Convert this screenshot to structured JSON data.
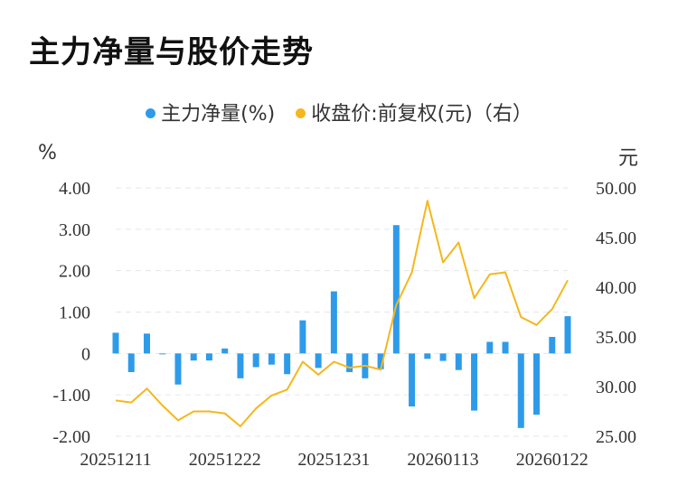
{
  "title": "主力净量与股价走势",
  "legend": [
    {
      "label": "主力净量(%)",
      "color": "#2e9bea"
    },
    {
      "label": "收盘价:前复权(元)（右）",
      "color": "#f5b71c"
    }
  ],
  "left_unit": "%",
  "right_unit": "元",
  "chart_data": {
    "type": "bar+line",
    "title": "主力净量与股价走势",
    "y_left": {
      "label": "%",
      "range": [
        -2,
        4
      ],
      "ticks": [
        "4.00",
        "3.00",
        "2.00",
        "1.00",
        "0",
        "-1.00",
        "-2.00"
      ],
      "tick_values": [
        4,
        3,
        2,
        1,
        0,
        -1,
        -2
      ]
    },
    "y_right": {
      "label": "元",
      "range": [
        25,
        50
      ],
      "ticks": [
        "50.00",
        "45.00",
        "40.00",
        "35.00",
        "30.00",
        "25.00"
      ],
      "tick_values": [
        50,
        45,
        40,
        35,
        30,
        25
      ]
    },
    "x_tick_labels": [
      "20251211",
      "20251222",
      "20251231",
      "20260113",
      "20260122"
    ],
    "x_tick_index": [
      0,
      7,
      14,
      21,
      28
    ],
    "series": [
      {
        "name": "主力净量(%)",
        "type": "bar",
        "axis": "left",
        "color": "#2e9bea",
        "values": [
          0.5,
          -0.45,
          0.48,
          -0.02,
          -0.75,
          -0.17,
          -0.17,
          0.12,
          -0.6,
          -0.33,
          -0.27,
          -0.5,
          0.8,
          -0.35,
          1.5,
          -0.45,
          -0.6,
          -0.38,
          3.1,
          -1.28,
          -0.13,
          -0.18,
          -0.4,
          -1.38,
          0.28,
          0.28,
          -1.8,
          -1.48,
          0.4,
          0.9
        ]
      },
      {
        "name": "收盘价:前复权(元)（右）",
        "type": "line",
        "axis": "right",
        "color": "#f5b71c",
        "values": [
          28.6,
          28.4,
          29.8,
          28.1,
          26.6,
          27.5,
          27.5,
          27.3,
          26.0,
          27.8,
          29.1,
          29.7,
          32.5,
          31.2,
          32.5,
          31.9,
          32.1,
          31.7,
          38.2,
          41.5,
          48.7,
          42.5,
          44.5,
          38.9,
          41.3,
          41.5,
          37.0,
          36.2,
          37.8,
          40.7
        ]
      }
    ]
  }
}
